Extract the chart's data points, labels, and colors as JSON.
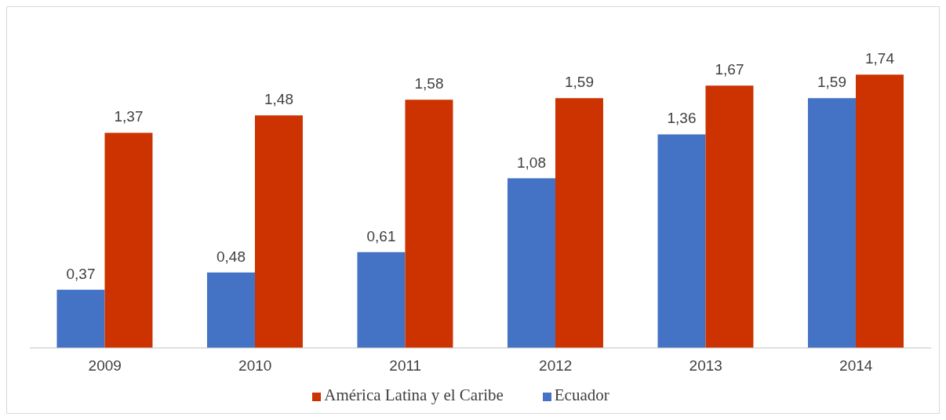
{
  "chart_data": {
    "type": "bar",
    "categories": [
      "2009",
      "2010",
      "2011",
      "2012",
      "2013",
      "2014"
    ],
    "series": [
      {
        "name": "Ecuador",
        "color": "#4472c4",
        "values": [
          0.37,
          0.48,
          0.61,
          1.08,
          1.36,
          1.59
        ],
        "value_labels": [
          "0,37",
          "0,48",
          "0,61",
          "1,08",
          "1,36",
          "1,59"
        ]
      },
      {
        "name": "América Latina y el Caribe",
        "color": "#cc3300",
        "values": [
          1.37,
          1.48,
          1.58,
          1.59,
          1.67,
          1.74
        ],
        "value_labels": [
          "1,37",
          "1,48",
          "1,58",
          "1,59",
          "1,67",
          "1,74"
        ]
      }
    ],
    "legend": "bottom",
    "grid": false
  }
}
